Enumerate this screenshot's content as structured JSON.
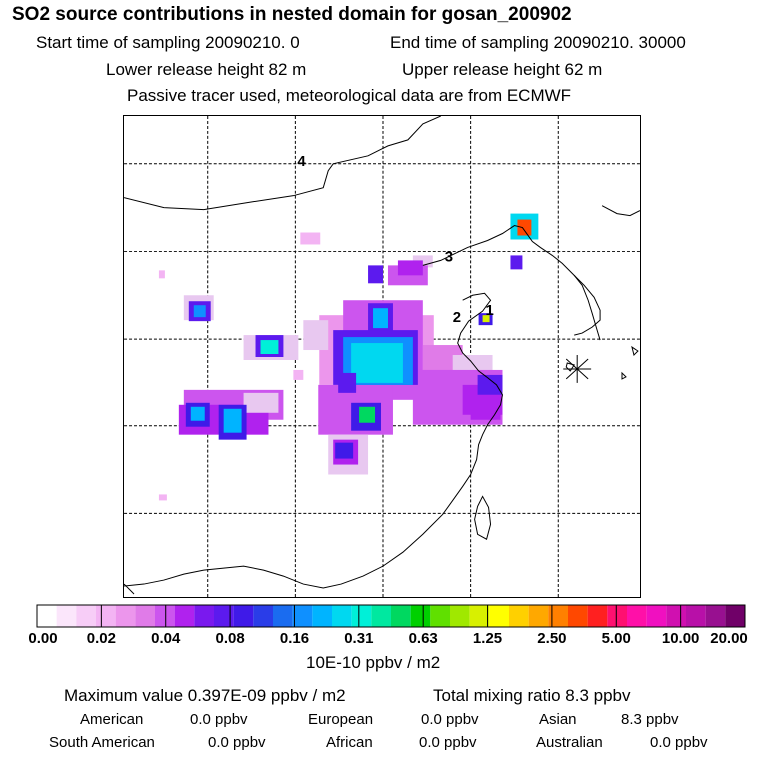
{
  "title": "SO2 source contributions in nested domain for gosan_200902",
  "header": {
    "start": "Start time of sampling 20090210.     0",
    "end": "End time of sampling 20090210. 30000",
    "lower": "Lower release height   82 m",
    "upper": "Upper release height   62 m",
    "note": "Passive tracer used, meteorological data are from ECMWF"
  },
  "map": {
    "labels": [
      "1",
      "2",
      "3",
      "4"
    ]
  },
  "colorbar": {
    "ticks": [
      "0.00",
      "0.02",
      "0.04",
      "0.08",
      "0.16",
      "0.31",
      "0.63",
      "1.25",
      "2.50",
      "5.00",
      "10.00",
      "20.00"
    ],
    "unit": "10E-10 ppbv / m2",
    "colors": [
      "#ffffff",
      "#fbe6fb",
      "#f7cdf7",
      "#f3b4f3",
      "#ec96ec",
      "#e07be8",
      "#cc55ee",
      "#b022ee",
      "#7a19ee",
      "#5c1aee",
      "#3f1ae8",
      "#2a3de8",
      "#1a6cf0",
      "#0f90ff",
      "#00b4ff",
      "#00d8f0",
      "#00f0d8",
      "#00e8a0",
      "#00d860",
      "#00d000",
      "#60e000",
      "#a0e800",
      "#d8f000",
      "#ffff00",
      "#ffd000",
      "#ffa800",
      "#ff8000",
      "#ff4800",
      "#ff2020",
      "#ff1070",
      "#ff10a8",
      "#f010c0",
      "#d010b0",
      "#b810a8",
      "#981090",
      "#700068"
    ]
  },
  "stats": {
    "max": "Maximum value  0.397E-09 ppbv / m2",
    "total": "Total mixing ratio       8.3 ppbv",
    "rows": [
      [
        {
          "k": "American",
          "v": "0.0 ppbv"
        },
        {
          "k": "European",
          "v": "0.0 ppbv"
        },
        {
          "k": "Asian",
          "v": "8.3 ppbv"
        }
      ],
      [
        {
          "k": "South American",
          "v": "0.0 ppbv"
        },
        {
          "k": "African",
          "v": "0.0 ppbv"
        },
        {
          "k": "Australian",
          "v": "0.0 ppbv"
        }
      ]
    ]
  }
}
